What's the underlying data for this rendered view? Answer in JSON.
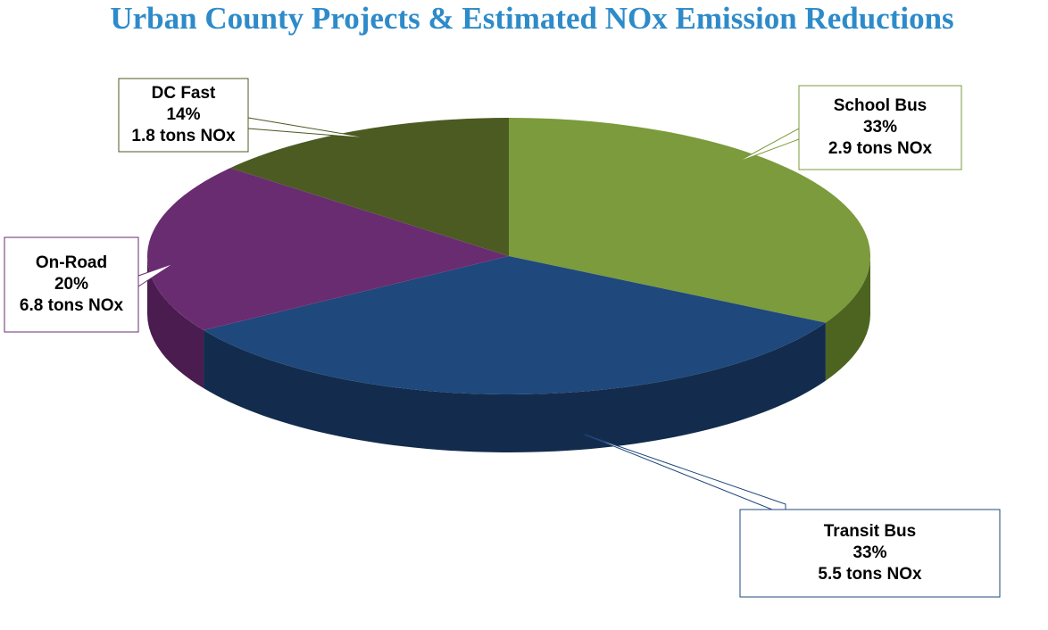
{
  "chart_data": {
    "type": "pie",
    "title": "Urban County Projects & Estimated NOx Emission Reductions",
    "categories": [
      "School Bus",
      "Transit Bus",
      "On-Road",
      "DC Fast"
    ],
    "values": [
      33,
      33,
      20,
      14
    ],
    "value_labels": [
      "33%",
      "33%",
      "20%",
      "14%"
    ],
    "emission_labels": [
      "2.9 tons NOx",
      "5.5 tons NOx",
      "6.8 tons NOx",
      "1.8 tons NOx"
    ],
    "colors": [
      "#7b9b3c",
      "#1f487c",
      "#6a2c70",
      "#4b5b22"
    ],
    "side_colors": [
      "#4d6420",
      "#132c4d",
      "#4a1c50",
      "#2f3a14"
    ]
  }
}
